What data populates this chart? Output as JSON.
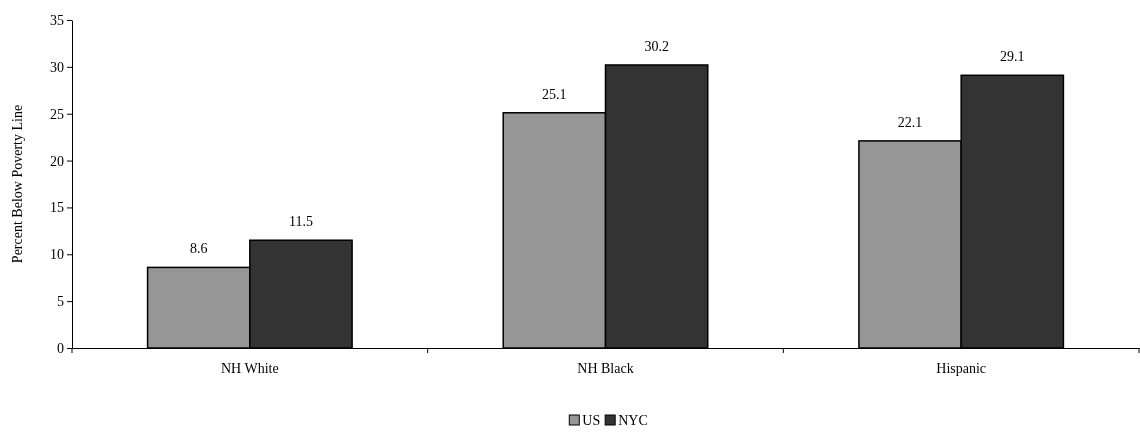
{
  "chart_data": {
    "type": "bar",
    "ylabel": "Percent Below Poverty Line",
    "categories": [
      "NH White",
      "NH Black",
      "Hispanic"
    ],
    "series": [
      {
        "name": "US",
        "color": "#969696",
        "values": [
          8.6,
          25.1,
          22.1
        ]
      },
      {
        "name": "NYC",
        "color": "#333333",
        "values": [
          11.5,
          30.2,
          29.1
        ]
      }
    ],
    "ylim": [
      0,
      35
    ],
    "yticks": [
      0,
      5,
      10,
      15,
      20,
      25,
      30,
      35
    ],
    "data_labels": true,
    "legend": "bottom",
    "grid": false
  }
}
